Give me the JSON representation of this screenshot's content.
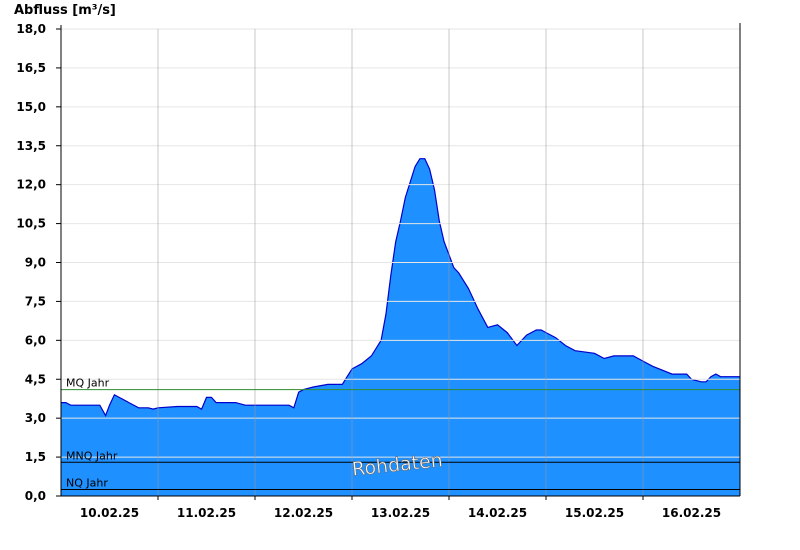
{
  "chart_data": {
    "type": "area",
    "ylabel": "Abfluss [m³/s]",
    "ylim": [
      0,
      18
    ],
    "y_ticks": [
      "0,0",
      "1,5",
      "3,0",
      "4,5",
      "6,0",
      "7,5",
      "9,0",
      "10,5",
      "12,0",
      "13,5",
      "15,0",
      "16,5",
      "18,0"
    ],
    "x_ticks": [
      "10.02.25",
      "11.02.25",
      "12.02.25",
      "13.02.25",
      "14.02.25",
      "15.02.25",
      "16.02.25"
    ],
    "x_unit": "days since 09.02.25 12:00",
    "xlim": [
      0,
      7
    ],
    "grid": true,
    "watermark": "Rohdaten",
    "series": [
      {
        "name": "Abfluss",
        "color": "#1e90ff",
        "line_color": "#0000cc",
        "x": [
          0,
          0.05,
          0.1,
          0.3,
          0.4,
          0.43,
          0.46,
          0.5,
          0.55,
          0.6,
          0.7,
          0.8,
          0.9,
          0.95,
          1.0,
          1.2,
          1.4,
          1.45,
          1.5,
          1.55,
          1.6,
          1.8,
          1.9,
          2.2,
          2.35,
          2.4,
          2.45,
          2.5,
          2.6,
          2.75,
          2.9,
          2.95,
          3.0,
          3.1,
          3.2,
          3.3,
          3.35,
          3.4,
          3.45,
          3.5,
          3.55,
          3.6,
          3.65,
          3.7,
          3.75,
          3.8,
          3.85,
          3.9,
          3.95,
          4.0,
          4.05,
          4.1,
          4.2,
          4.3,
          4.4,
          4.5,
          4.6,
          4.7,
          4.8,
          4.9,
          4.95,
          5.0,
          5.05,
          5.1,
          5.2,
          5.3,
          5.5,
          5.6,
          5.7,
          5.9,
          6.0,
          6.1,
          6.3,
          6.45,
          6.5,
          6.6,
          6.65,
          6.7,
          6.75,
          6.8,
          7.0
        ],
        "y": [
          3.6,
          3.6,
          3.5,
          3.5,
          3.5,
          3.3,
          3.1,
          3.5,
          3.9,
          3.8,
          3.6,
          3.4,
          3.4,
          3.35,
          3.4,
          3.45,
          3.45,
          3.35,
          3.8,
          3.8,
          3.6,
          3.6,
          3.5,
          3.5,
          3.5,
          3.4,
          4.0,
          4.1,
          4.2,
          4.3,
          4.3,
          4.6,
          4.9,
          5.1,
          5.4,
          6.0,
          7.0,
          8.5,
          9.8,
          10.6,
          11.5,
          12.1,
          12.7,
          13.0,
          13.0,
          12.6,
          11.8,
          10.6,
          9.8,
          9.3,
          8.8,
          8.6,
          8.0,
          7.2,
          6.5,
          6.6,
          6.3,
          5.8,
          6.2,
          6.4,
          6.4,
          6.3,
          6.2,
          6.1,
          5.8,
          5.6,
          5.5,
          5.3,
          5.4,
          5.4,
          5.2,
          5.0,
          4.7,
          4.7,
          4.5,
          4.4,
          4.4,
          4.6,
          4.7,
          4.6,
          4.6
        ]
      }
    ],
    "reference_lines": [
      {
        "label": "MQ Jahr",
        "value": 4.1,
        "color": "#2e8b2e"
      },
      {
        "label": "MNQ Jahr",
        "value": 1.3,
        "color": "#000000"
      },
      {
        "label": "NQ Jahr",
        "value": 0.25,
        "color": "#000000"
      }
    ]
  }
}
